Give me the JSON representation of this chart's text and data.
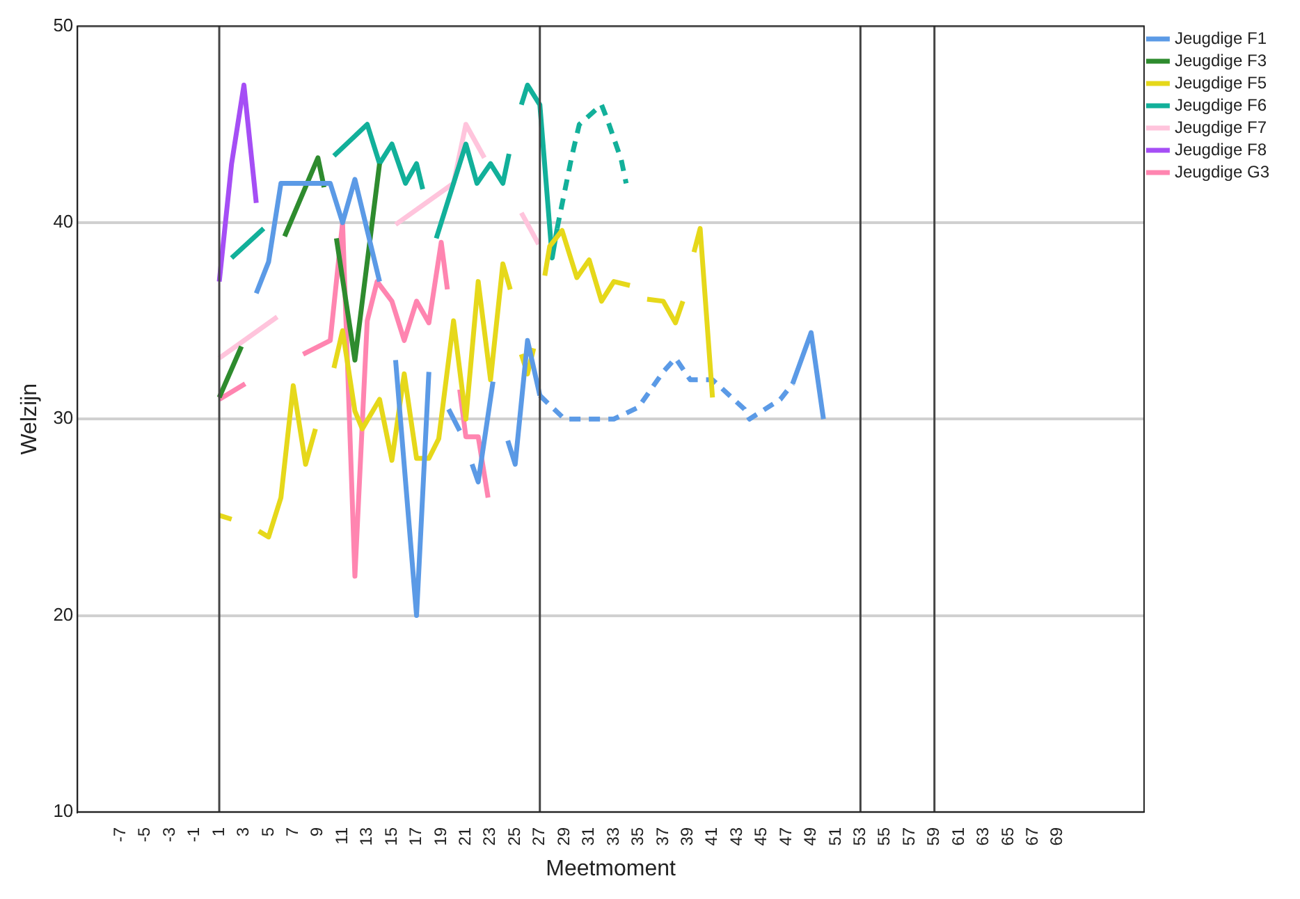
{
  "chart_data": {
    "type": "line",
    "xlabel": "Meetmoment",
    "ylabel": "Welzijn",
    "xlim": [
      -10.5,
      76
    ],
    "xticks": [
      -7,
      -5,
      -3,
      -1,
      1,
      3,
      5,
      7,
      9,
      11,
      13,
      15,
      17,
      19,
      21,
      23,
      25,
      27,
      29,
      31,
      33,
      35,
      37,
      39,
      41,
      43,
      45,
      47,
      49,
      51,
      53,
      55,
      57,
      59,
      61,
      63,
      65,
      67,
      69
    ],
    "ylim": [
      10,
      50
    ],
    "yticks": [
      10,
      20,
      30,
      40,
      50
    ],
    "grid": "y",
    "legend": "top right",
    "ref_lines": [
      {
        "axis": "x",
        "value": 1,
        "color": "#444444"
      },
      {
        "axis": "x",
        "value": 27,
        "color": "#444444"
      },
      {
        "axis": "x",
        "value": 53,
        "color": "#444444"
      },
      {
        "axis": "x",
        "value": 59,
        "color": "#444444"
      }
    ],
    "series": [
      {
        "name": "Jeugdige F1",
        "color": "#5b9ae6",
        "x": [
          4,
          5,
          6,
          10,
          11,
          12,
          14,
          14.5,
          15.3,
          17,
          18,
          18.5,
          19.6,
          20.5,
          21,
          21.5,
          22,
          23.2,
          23.7,
          24.4,
          25,
          26,
          27,
          40,
          47.5,
          49,
          50
        ],
        "values": [
          36.4,
          38,
          42,
          42,
          40,
          42.2,
          37,
          null,
          33,
          20,
          32.4,
          null,
          30.5,
          29.4,
          null,
          27.7,
          26.8,
          31.9,
          null,
          28.9,
          27.7,
          34,
          31.2,
          null,
          31.8,
          34.4,
          30
        ]
      },
      {
        "name": "Jeugdige F3",
        "color": "#2e8b2e",
        "x": [
          1,
          2.8,
          4,
          6.3,
          9,
          9.5,
          10,
          10.5,
          12,
          14
        ],
        "values": [
          31.1,
          33.7,
          null,
          39.3,
          43.3,
          41.8,
          null,
          39.2,
          33,
          43
        ]
      },
      {
        "name": "Jeugdige F5",
        "color": "#e6d81a",
        "x": [
          1,
          2,
          3,
          4.2,
          5,
          6,
          7,
          8,
          8.8,
          9.5,
          10.3,
          11,
          12,
          12.6,
          14,
          15,
          16,
          17,
          18,
          18.8,
          20,
          21,
          22,
          23,
          24,
          24.6,
          25,
          25.5,
          26,
          26.5,
          27,
          27.4,
          27.8,
          28.8,
          30,
          31,
          32,
          33,
          34.3,
          35,
          35.7,
          37,
          38,
          38.6,
          39,
          39.5,
          40,
          41
        ],
        "values": [
          25.1,
          24.9,
          null,
          24.3,
          24,
          26,
          31.7,
          27.7,
          29.5,
          null,
          32.6,
          34.5,
          30.4,
          29.5,
          31,
          27.9,
          32.3,
          28,
          28,
          29,
          35,
          30,
          37,
          32,
          37.9,
          36.6,
          null,
          33.3,
          32.3,
          33.6,
          null,
          37.3,
          38.8,
          39.6,
          37.2,
          38.1,
          36,
          37,
          36.8,
          null,
          36.1,
          36,
          34.9,
          36,
          null,
          38.5,
          39.7,
          31.1
        ]
      },
      {
        "name": "Jeugdige F6",
        "color": "#12b09a",
        "x": [
          2,
          4.6,
          7,
          10.3,
          13,
          14,
          15,
          16.1,
          17,
          17.5,
          18,
          18.6,
          21,
          21.9,
          23,
          24,
          24.5,
          25,
          25.5,
          26,
          27,
          28,
          28.4
        ],
        "values": [
          38.2,
          39.7,
          null,
          43.4,
          45,
          43,
          44,
          42,
          43,
          41.7,
          null,
          39.2,
          44,
          42,
          43,
          42,
          43.5,
          null,
          46,
          47,
          46,
          38.2,
          39.7
        ]
      },
      {
        "name": "Jeugdige F7",
        "color": "#ffc4dc",
        "x": [
          1,
          5.7,
          10,
          15.3,
          20,
          21,
          22.5,
          24,
          25.5,
          26.9
        ],
        "values": [
          33.1,
          35.2,
          null,
          39.9,
          42,
          45,
          43.3,
          null,
          40.5,
          38.9
        ]
      },
      {
        "name": "Jeugdige F8",
        "color": "#a54ef5",
        "x": [
          1,
          2,
          3,
          4
        ],
        "values": [
          37,
          43,
          47,
          41
        ]
      },
      {
        "name": "Jeugdige G3",
        "color": "#ff85b0",
        "x": [
          1,
          3.1,
          5,
          7.8,
          10,
          11,
          12,
          13,
          13.8,
          15,
          16,
          17,
          18,
          19,
          19.5,
          20,
          20.5,
          21,
          22,
          22.8
        ],
        "values": [
          31,
          31.8,
          null,
          33.3,
          34,
          40,
          22,
          35,
          37,
          36,
          34,
          36,
          34.9,
          39,
          36.6,
          null,
          31.5,
          29.1,
          29.1,
          26
        ]
      },
      {
        "color": "#5b9ae6",
        "line_style": "dashed",
        "x": [
          27,
          29,
          31,
          33,
          35,
          37,
          38,
          39.2,
          41,
          43.6,
          44,
          46.5,
          47.5
        ],
        "values": [
          31.2,
          30,
          30,
          30,
          30.6,
          32.4,
          33.1,
          32,
          32,
          30.5,
          30,
          31,
          31.8
        ]
      },
      {
        "color": "#12b09a",
        "line_style": "dashed",
        "x": [
          28.4,
          29.6,
          30.2,
          32,
          32.5,
          33.6,
          34
        ],
        "values": [
          39.7,
          43.4,
          45,
          46,
          45.2,
          43.2,
          42
        ]
      }
    ]
  }
}
